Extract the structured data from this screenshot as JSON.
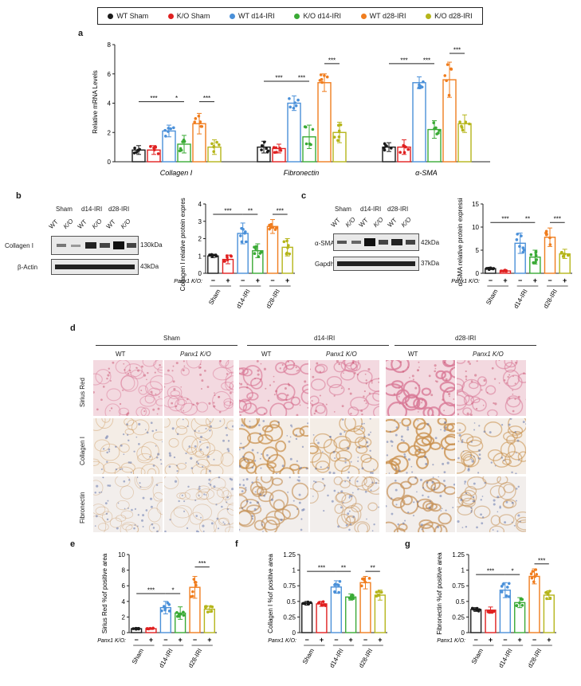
{
  "legend": [
    {
      "label": "WT Sham",
      "color": "#1a1a1a"
    },
    {
      "label": "K/O Sham",
      "color": "#e02020"
    },
    {
      "label": "WT d14-IRI",
      "color": "#4a90d9"
    },
    {
      "label": "K/O d14-IRI",
      "color": "#3aaa35"
    },
    {
      "label": "WT d28-IRI",
      "color": "#f07d1e"
    },
    {
      "label": "K/O d28-IRI",
      "color": "#b5b51a"
    }
  ],
  "panel_labels": {
    "a": "a",
    "b": "b",
    "c": "c",
    "d": "d",
    "e": "e",
    "f": "f",
    "g": "g"
  },
  "panel_b": {
    "groups": [
      "Sham",
      "d14-IRI",
      "d28-IRI"
    ],
    "lanes": [
      "WT",
      "K/O",
      "WT",
      "K/O",
      "WT",
      "K/O"
    ],
    "rows": [
      {
        "label": "Collagen I",
        "mw": "130kDa"
      },
      {
        "label": "β-Actin",
        "mw": "43kDa"
      }
    ]
  },
  "panel_c": {
    "groups": [
      "Sham",
      "d14-IRI",
      "d28-IRI"
    ],
    "lanes": [
      "WT",
      "K/O",
      "WT",
      "K/O",
      "WT",
      "K/O"
    ],
    "rows": [
      {
        "label": "α-SMA",
        "mw": "42kDa"
      },
      {
        "label": "Gapdh",
        "mw": "37kDa"
      }
    ]
  },
  "panel_d": {
    "groups": [
      "Sham",
      "d14-IRI",
      "d28-IRI"
    ],
    "columns": [
      "WT",
      "Panx1 K/O",
      "WT",
      "Panx1 K/O",
      "WT",
      "Panx1 K/O"
    ],
    "rows": [
      "Sirius Red",
      "Collagen I",
      "Fibronectin"
    ]
  },
  "x_axis": {
    "genotype_label": "Panx1 K/O:",
    "signs": [
      "−",
      "+",
      "−",
      "+",
      "−",
      "+"
    ],
    "groups": [
      "Sham",
      "d14-IRI",
      "d28-IRI"
    ]
  },
  "chart_data": [
    {
      "id": "a",
      "type": "bar",
      "categories": [
        "Collagen I",
        "Fibronectin",
        "α-SMA"
      ],
      "ylabel": "Relative mRNA Levels",
      "ylim": [
        0,
        8
      ],
      "yticks": [
        0,
        2,
        4,
        6,
        8
      ],
      "series": [
        {
          "name": "WT Sham",
          "values": [
            0.8,
            1.0,
            1.0
          ]
        },
        {
          "name": "K/O Sham",
          "values": [
            0.8,
            0.9,
            1.0
          ]
        },
        {
          "name": "WT d14-IRI",
          "values": [
            2.1,
            4.0,
            5.4
          ]
        },
        {
          "name": "K/O d14-IRI",
          "values": [
            1.2,
            1.7,
            2.2
          ]
        },
        {
          "name": "WT d28-IRI",
          "values": [
            2.6,
            5.4,
            5.6
          ]
        },
        {
          "name": "K/O d28-IRI",
          "values": [
            1.0,
            2.0,
            2.6
          ]
        }
      ],
      "errors": [
        [
          0.3,
          0.3,
          0.4,
          0.6,
          0.7,
          0.5
        ],
        [
          0.4,
          0.3,
          0.5,
          0.8,
          0.6,
          0.7
        ],
        [
          0.3,
          0.5,
          0.4,
          0.6,
          1.2,
          0.6
        ]
      ],
      "significance": [
        {
          "category": 0,
          "from": 0,
          "to": 2,
          "label": "***",
          "y": 4.1
        },
        {
          "category": 0,
          "from": 2,
          "to": 3,
          "label": "*",
          "y": 4.1
        },
        {
          "category": 0,
          "from": 4,
          "to": 5,
          "label": "***",
          "y": 4.1
        },
        {
          "category": 1,
          "from": 0,
          "to": 2,
          "label": "***",
          "y": 5.5
        },
        {
          "category": 1,
          "from": 2,
          "to": 3,
          "label": "***",
          "y": 5.5
        },
        {
          "category": 1,
          "from": 4,
          "to": 5,
          "label": "***",
          "y": 6.7
        },
        {
          "category": 2,
          "from": 0,
          "to": 2,
          "label": "***",
          "y": 6.7
        },
        {
          "category": 2,
          "from": 2,
          "to": 3,
          "label": "***",
          "y": 6.7
        },
        {
          "category": 2,
          "from": 4,
          "to": 5,
          "label": "***",
          "y": 7.4
        }
      ]
    },
    {
      "id": "b",
      "type": "bar",
      "ylabel": "Collagen I  relative protein expression",
      "ylim": [
        0,
        4
      ],
      "yticks": [
        0,
        1,
        2,
        3,
        4
      ],
      "values": [
        1.0,
        0.8,
        2.3,
        1.3,
        2.7,
        1.5
      ],
      "errors": [
        0.1,
        0.25,
        0.6,
        0.4,
        0.4,
        0.5
      ],
      "significance": [
        {
          "from": 0,
          "to": 2,
          "label": "***",
          "y": 3.4
        },
        {
          "from": 2,
          "to": 3,
          "label": "**",
          "y": 3.4
        },
        {
          "from": 4,
          "to": 5,
          "label": "***",
          "y": 3.4
        }
      ]
    },
    {
      "id": "c",
      "type": "bar",
      "ylabel": "α-SMA  relative protein expression",
      "ylim": [
        0,
        15
      ],
      "yticks": [
        0,
        5,
        10,
        15
      ],
      "values": [
        1.0,
        0.5,
        6.5,
        3.5,
        7.8,
        4.2
      ],
      "errors": [
        0.2,
        0.2,
        2.2,
        1.5,
        2.0,
        1.0
      ],
      "significance": [
        {
          "from": 0,
          "to": 2,
          "label": "***",
          "y": 11
        },
        {
          "from": 2,
          "to": 3,
          "label": "**",
          "y": 11
        },
        {
          "from": 4,
          "to": 5,
          "label": "***",
          "y": 11
        }
      ]
    },
    {
      "id": "e",
      "type": "bar",
      "ylabel": "Sirius Red %of positive area",
      "ylim": [
        0,
        10
      ],
      "yticks": [
        0,
        2,
        4,
        6,
        8,
        10
      ],
      "values": [
        0.5,
        0.5,
        3.2,
        2.5,
        5.8,
        3.0
      ],
      "errors": [
        0.1,
        0.1,
        0.8,
        0.8,
        1.4,
        0.4
      ],
      "significance": [
        {
          "from": 0,
          "to": 2,
          "label": "***",
          "y": 5.0
        },
        {
          "from": 2,
          "to": 3,
          "label": "*",
          "y": 5.0
        },
        {
          "from": 4,
          "to": 5,
          "label": "***",
          "y": 8.4
        }
      ]
    },
    {
      "id": "f",
      "type": "bar",
      "ylabel": "Collagen I %of positive area",
      "ylim": [
        0,
        1.25
      ],
      "yticks": [
        0,
        0.25,
        0.5,
        0.75,
        1.0,
        1.25
      ],
      "values": [
        0.47,
        0.46,
        0.73,
        0.57,
        0.8,
        0.6
      ],
      "errors": [
        0.03,
        0.04,
        0.1,
        0.05,
        0.1,
        0.08
      ],
      "significance": [
        {
          "from": 0,
          "to": 2,
          "label": "***",
          "y": 0.98
        },
        {
          "from": 2,
          "to": 3,
          "label": "**",
          "y": 0.98
        },
        {
          "from": 4,
          "to": 5,
          "label": "**",
          "y": 0.98
        }
      ]
    },
    {
      "id": "g",
      "type": "bar",
      "ylabel": "Fibronectin %of positive area",
      "ylim": [
        0,
        1.25
      ],
      "yticks": [
        0,
        0.25,
        0.5,
        0.75,
        1.0,
        1.25
      ],
      "values": [
        0.37,
        0.36,
        0.68,
        0.48,
        0.9,
        0.6
      ],
      "errors": [
        0.03,
        0.05,
        0.12,
        0.08,
        0.12,
        0.07
      ],
      "significance": [
        {
          "from": 0,
          "to": 2,
          "label": "***",
          "y": 0.93
        },
        {
          "from": 2,
          "to": 3,
          "label": "*",
          "y": 0.93
        },
        {
          "from": 4,
          "to": 5,
          "label": "***",
          "y": 1.1
        }
      ]
    }
  ]
}
